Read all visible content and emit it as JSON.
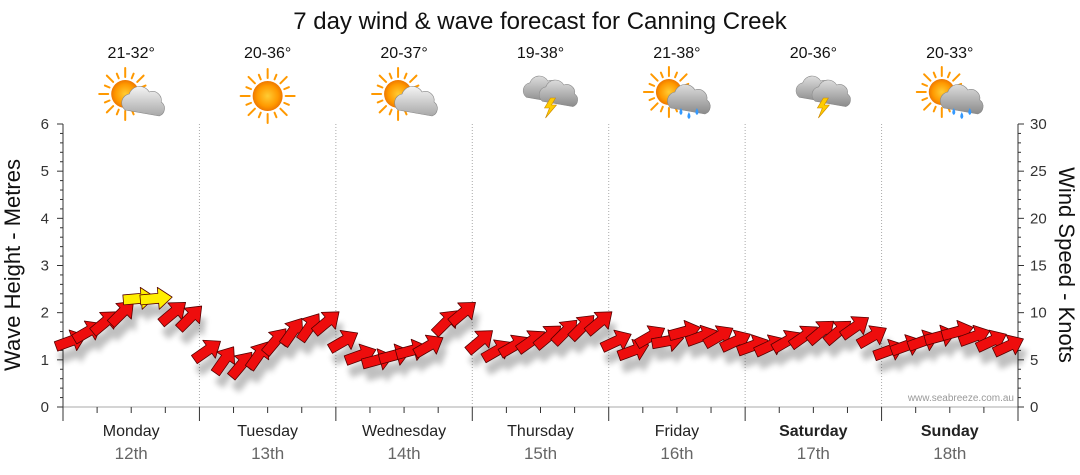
{
  "chart_data": {
    "type": "line",
    "title": "7 day wind & wave forecast for Canning Creek",
    "ylabel_left": "Wave Height - Metres",
    "ylabel_right": "Wind Speed - Knots",
    "ylim_left": [
      0,
      6
    ],
    "ylim_right": [
      0,
      30
    ],
    "yticks_left": [
      "0",
      "1",
      "2",
      "3",
      "4",
      "5",
      "6"
    ],
    "yticks_right": [
      "0",
      "5",
      "10",
      "15",
      "20",
      "25",
      "30"
    ],
    "grid": "vertical-dotted",
    "watermark": "www.seabreeze.com.au",
    "days": [
      {
        "name": "Monday",
        "date": "12th",
        "temp": "21-32°",
        "icon": "partly-cloudy-sun-icon",
        "bold": false
      },
      {
        "name": "Tuesday",
        "date": "13th",
        "temp": "20-36°",
        "icon": "sunny-icon",
        "bold": false
      },
      {
        "name": "Wednesday",
        "date": "14th",
        "temp": "20-37°",
        "icon": "partly-cloudy-sun-icon",
        "bold": false
      },
      {
        "name": "Thursday",
        "date": "15th",
        "temp": "19-38°",
        "icon": "thunderstorm-icon",
        "bold": false
      },
      {
        "name": "Friday",
        "date": "16th",
        "temp": "21-38°",
        "icon": "sun-cloud-rain-icon",
        "bold": false
      },
      {
        "name": "Saturday",
        "date": "17th",
        "temp": "20-36°",
        "icon": "thunderstorm-icon",
        "bold": true
      },
      {
        "name": "Sunday",
        "date": "18th",
        "temp": "20-33°",
        "icon": "sun-cloud-rain-icon",
        "bold": true
      }
    ],
    "wind_series": {
      "name": "Wind Speed",
      "unit": "knots",
      "day_positions": [
        0,
        0.125,
        0.25,
        0.375,
        0.5,
        0.625,
        0.75,
        0.875,
        1,
        1.125,
        1.25,
        1.375,
        1.5,
        1.625,
        1.75,
        1.875,
        2,
        2.125,
        2.25,
        2.375,
        2.5,
        2.625,
        2.75,
        2.875,
        3,
        3.125,
        3.25,
        3.375,
        3.5,
        3.625,
        3.75,
        3.875,
        4,
        4.125,
        4.25,
        4.375,
        4.5,
        4.625,
        4.75,
        4.875,
        5,
        5.125,
        5.25,
        5.375,
        5.5,
        5.625,
        5.75,
        5.875,
        6,
        6.125,
        6.25,
        6.375,
        6.5,
        6.625,
        6.75,
        6.875
      ],
      "speeds": [
        7,
        8,
        9,
        10,
        11.5,
        11.5,
        10,
        9.5,
        6,
        5,
        4.5,
        5.5,
        7,
        8,
        8.5,
        9,
        7,
        5.5,
        5,
        5.5,
        6,
        6.5,
        9,
        10,
        7,
        6,
        6.5,
        7,
        7.5,
        8,
        8.5,
        9,
        7,
        6,
        7.5,
        7,
        8,
        7.5,
        7.5,
        7,
        6.5,
        6.5,
        7,
        7.5,
        8,
        8,
        8.5,
        7.5,
        6,
        6.5,
        7,
        7.5,
        8,
        7.5,
        7,
        6.5
      ],
      "directions_deg": [
        250,
        240,
        230,
        225,
        265,
        265,
        230,
        225,
        235,
        215,
        220,
        215,
        220,
        215,
        215,
        230,
        240,
        250,
        255,
        255,
        255,
        240,
        225,
        230,
        230,
        240,
        240,
        235,
        230,
        225,
        225,
        230,
        245,
        250,
        240,
        260,
        255,
        250,
        240,
        245,
        250,
        245,
        240,
        235,
        230,
        230,
        235,
        240,
        250,
        250,
        250,
        255,
        255,
        250,
        245,
        245
      ],
      "arrow_colors": [
        "red",
        "red",
        "red",
        "red",
        "yellow",
        "yellow",
        "red",
        "red",
        "red",
        "red",
        "red",
        "red",
        "red",
        "red",
        "red",
        "red",
        "red",
        "red",
        "red",
        "red",
        "red",
        "red",
        "red",
        "red",
        "red",
        "red",
        "red",
        "red",
        "red",
        "red",
        "red",
        "red",
        "red",
        "red",
        "red",
        "red",
        "red",
        "red",
        "red",
        "red",
        "red",
        "red",
        "red",
        "red",
        "red",
        "red",
        "red",
        "red",
        "red",
        "red",
        "red",
        "red",
        "red",
        "red",
        "red",
        "red"
      ]
    }
  },
  "colors": {
    "arrow_red": "#ee1111",
    "arrow_yellow": "#ffee00",
    "arrow_outline": "#550000",
    "grid": "#aaaaaa",
    "axis": "#333333"
  }
}
